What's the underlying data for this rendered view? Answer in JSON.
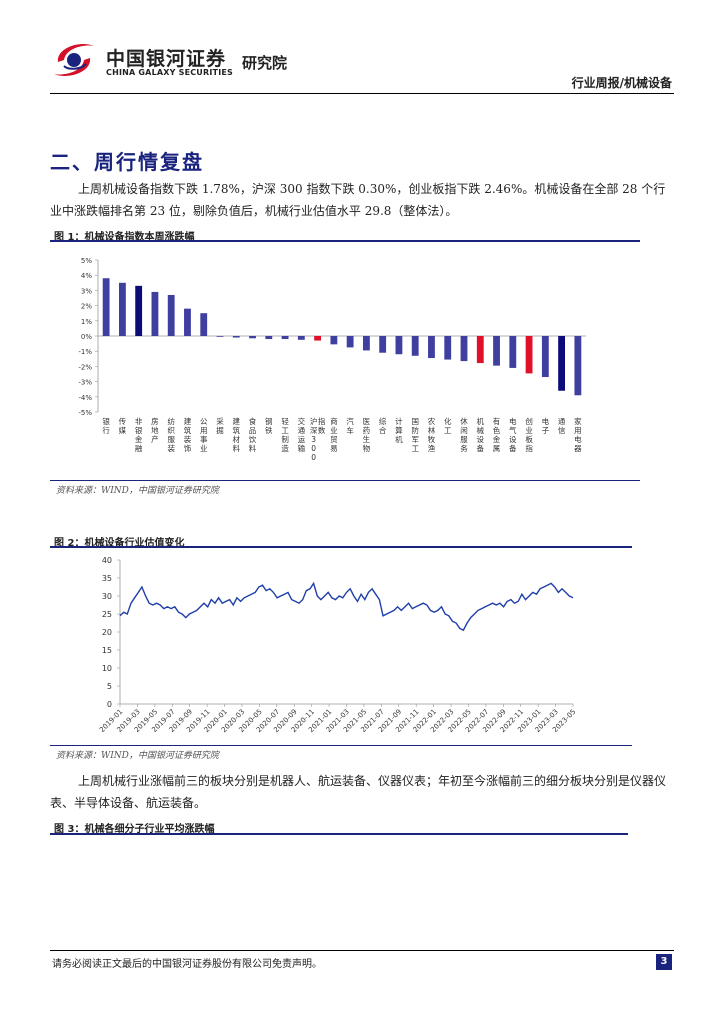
{
  "header": {
    "logo_cn": "中国银河证券",
    "logo_en": "CHINA GALAXY SECURITIES",
    "institute": "研究院",
    "report_type": "行业周报/机械设备"
  },
  "section": {
    "title": "二、周行情复盘",
    "para1": "上周机械设备指数下跌 1.78%，沪深 300 指数下跌 0.30%，创业板指下跌 2.46%。机械设备在全部 28 个行业中涨跌幅排名第 23 位，剔除负值后，机械行业估值水平 29.8（整体法）。",
    "para2": "上周机械行业涨幅前三的板块分别是机器人、航运装备、仪器仪表；年初至今涨幅前三的细分板块分别是仪器仪表、半导体设备、航运装备。"
  },
  "figure1": {
    "title": "图 1：机械设备指数本周涨跌幅",
    "source": "资料来源：WIND，中国银河证券研究院"
  },
  "figure2": {
    "title": "图 2：机械设备行业估值变化",
    "source": "资料来源：WIND，中国银河证券研究院"
  },
  "figure3": {
    "title": "图 3：机械各细分子行业平均涨跌幅"
  },
  "footer": {
    "disclaimer": "请务必阅读正文最后的中国银河证券股份有限公司免责声明。",
    "page": "3"
  },
  "colors": {
    "navy": "#1a237e",
    "bar_blue": "#3f3fa0",
    "bar_navy": "#0b0b7a",
    "bar_red": "#e0102a",
    "line_blue": "#1f3fa8",
    "brand_red": "#d4112a"
  },
  "chart_data": [
    {
      "type": "bar",
      "categories": [
        "银行",
        "传媒",
        "非银金融",
        "房地产",
        "纺织服装",
        "建筑装饰",
        "公用事业",
        "采掘",
        "建筑材料",
        "食品饮料",
        "钢铁",
        "轻工制造",
        "交通运输",
        "沪深300指数",
        "商业贸易",
        "汽车",
        "医药生物",
        "综合",
        "计算机",
        "国防军工",
        "农林牧渔",
        "化工",
        "休闲服务",
        "机械设备",
        "有色金属",
        "电气设备",
        "创业板指",
        "电子",
        "通信",
        "家用电器"
      ],
      "values": [
        3.8,
        3.5,
        3.3,
        2.9,
        2.7,
        1.8,
        1.5,
        -0.05,
        -0.1,
        -0.15,
        -0.2,
        -0.2,
        -0.25,
        -0.3,
        -0.55,
        -0.75,
        -0.95,
        -1.1,
        -1.2,
        -1.3,
        -1.45,
        -1.55,
        -1.65,
        -1.78,
        -1.95,
        -2.1,
        -2.46,
        -2.7,
        -3.6,
        -3.9
      ],
      "highlight": {
        "13": "red",
        "23": "red",
        "26": "red",
        "2": "navy",
        "28": "navy"
      },
      "ylim": [
        -5,
        5
      ],
      "yticks": [
        "5%",
        "4%",
        "3%",
        "2%",
        "1%",
        "0%",
        "-1%",
        "-2%",
        "-3%",
        "-4%",
        "-5%"
      ],
      "grid": false
    },
    {
      "type": "line",
      "x_labels": [
        "2019-01",
        "2019-03",
        "2019-05",
        "2019-07",
        "2019-09",
        "2019-11",
        "2020-01",
        "2020-03",
        "2020-05",
        "2020-07",
        "2020-09",
        "2020-11",
        "2021-01",
        "2021-03",
        "2021-05",
        "2021-07",
        "2021-09",
        "2021-11",
        "2022-01",
        "2022-03",
        "2022-05",
        "2022-07",
        "2022-09",
        "2022-11",
        "2023-01",
        "2023-03",
        "2023-05"
      ],
      "values": [
        24.5,
        25.5,
        25,
        28,
        29.5,
        31,
        32.5,
        30,
        28,
        27.5,
        28,
        27.5,
        26.5,
        27,
        26.5,
        27,
        25.5,
        25,
        24,
        25,
        25.5,
        26,
        27,
        28,
        27,
        29,
        28,
        29.5,
        28,
        28.5,
        29,
        27.5,
        29.5,
        28.5,
        29.5,
        30,
        30.5,
        31,
        32.5,
        33,
        31.5,
        32,
        31,
        29.5,
        30,
        30.5,
        31,
        29,
        28.5,
        28,
        29,
        31.5,
        32,
        33.5,
        30,
        29,
        30,
        31,
        29.5,
        29,
        30,
        29.5,
        31,
        32,
        30,
        28.5,
        30.5,
        29,
        31,
        32,
        30.5,
        29,
        24.5,
        25,
        25.5,
        26,
        27,
        26,
        27,
        28,
        26.5,
        27,
        27.5,
        28,
        27.5,
        26,
        25.5,
        26,
        27,
        25,
        24.5,
        23,
        22.5,
        21,
        20.5,
        22.5,
        24,
        25,
        26,
        26.5,
        27,
        27.5,
        28,
        27.5,
        28,
        27,
        28.5,
        29,
        28,
        28.5,
        30.5,
        29,
        30,
        31,
        30.5,
        32,
        32.5,
        33,
        33.5,
        32.5,
        31,
        32,
        31,
        30,
        29.5
      ],
      "ylim": [
        0,
        40
      ],
      "yticks": [
        0,
        5,
        10,
        15,
        20,
        25,
        30,
        35,
        40
      ],
      "grid": false
    }
  ]
}
